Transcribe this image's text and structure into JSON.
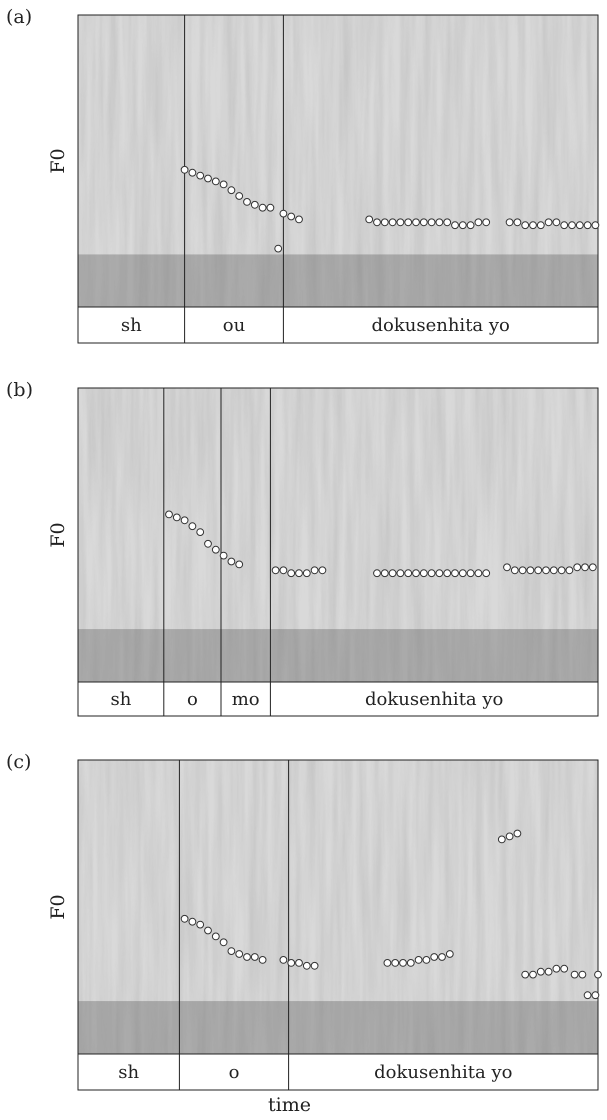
{
  "figure": {
    "xlabel": "time"
  },
  "chart_data": [
    {
      "type": "scatter",
      "panel": "(a)",
      "ylabel": "F0",
      "segments": [
        "sh",
        "ou",
        "dokusenhita yo"
      ],
      "series": [
        {
          "points": [
            [
              0.205,
              0.47
            ],
            [
              0.22,
              0.46
            ],
            [
              0.235,
              0.45
            ],
            [
              0.25,
              0.44
            ],
            [
              0.265,
              0.43
            ],
            [
              0.28,
              0.42
            ],
            [
              0.295,
              0.4
            ],
            [
              0.31,
              0.38
            ],
            [
              0.325,
              0.36
            ],
            [
              0.34,
              0.35
            ],
            [
              0.355,
              0.34
            ],
            [
              0.37,
              0.34
            ],
            [
              0.385,
              0.2
            ],
            [
              0.395,
              0.32
            ],
            [
              0.41,
              0.31
            ],
            [
              0.425,
              0.3
            ],
            [
              0.56,
              0.3
            ],
            [
              0.575,
              0.29
            ],
            [
              0.59,
              0.29
            ],
            [
              0.605,
              0.29
            ],
            [
              0.62,
              0.29
            ],
            [
              0.635,
              0.29
            ],
            [
              0.65,
              0.29
            ],
            [
              0.665,
              0.29
            ],
            [
              0.68,
              0.29
            ],
            [
              0.695,
              0.29
            ],
            [
              0.71,
              0.29
            ],
            [
              0.725,
              0.28
            ],
            [
              0.74,
              0.28
            ],
            [
              0.755,
              0.28
            ],
            [
              0.77,
              0.29
            ],
            [
              0.785,
              0.29
            ],
            [
              0.83,
              0.29
            ],
            [
              0.845,
              0.29
            ],
            [
              0.86,
              0.28
            ],
            [
              0.875,
              0.28
            ],
            [
              0.89,
              0.28
            ],
            [
              0.905,
              0.29
            ],
            [
              0.92,
              0.29
            ],
            [
              0.935,
              0.28
            ],
            [
              0.95,
              0.28
            ],
            [
              0.965,
              0.28
            ],
            [
              0.98,
              0.28
            ],
            [
              0.995,
              0.28
            ]
          ]
        }
      ]
    },
    {
      "type": "scatter",
      "panel": "(b)",
      "ylabel": "F0",
      "segments": [
        "sh",
        "o",
        "mo",
        "dokusenhita yo"
      ],
      "series": [
        {
          "points": [
            [
              0.175,
              0.57
            ],
            [
              0.19,
              0.56
            ],
            [
              0.205,
              0.55
            ],
            [
              0.22,
              0.53
            ],
            [
              0.235,
              0.51
            ],
            [
              0.25,
              0.47
            ],
            [
              0.265,
              0.45
            ],
            [
              0.28,
              0.43
            ],
            [
              0.295,
              0.41
            ],
            [
              0.31,
              0.4
            ],
            [
              0.38,
              0.38
            ],
            [
              0.395,
              0.38
            ],
            [
              0.41,
              0.37
            ],
            [
              0.425,
              0.37
            ],
            [
              0.44,
              0.37
            ],
            [
              0.455,
              0.38
            ],
            [
              0.47,
              0.38
            ],
            [
              0.575,
              0.37
            ],
            [
              0.59,
              0.37
            ],
            [
              0.605,
              0.37
            ],
            [
              0.62,
              0.37
            ],
            [
              0.635,
              0.37
            ],
            [
              0.65,
              0.37
            ],
            [
              0.665,
              0.37
            ],
            [
              0.68,
              0.37
            ],
            [
              0.695,
              0.37
            ],
            [
              0.71,
              0.37
            ],
            [
              0.725,
              0.37
            ],
            [
              0.74,
              0.37
            ],
            [
              0.755,
              0.37
            ],
            [
              0.77,
              0.37
            ],
            [
              0.785,
              0.37
            ],
            [
              0.825,
              0.39
            ],
            [
              0.84,
              0.38
            ],
            [
              0.855,
              0.38
            ],
            [
              0.87,
              0.38
            ],
            [
              0.885,
              0.38
            ],
            [
              0.9,
              0.38
            ],
            [
              0.915,
              0.38
            ],
            [
              0.93,
              0.38
            ],
            [
              0.945,
              0.38
            ],
            [
              0.96,
              0.39
            ],
            [
              0.975,
              0.39
            ],
            [
              0.99,
              0.39
            ]
          ]
        }
      ]
    },
    {
      "type": "scatter",
      "panel": "(c)",
      "ylabel": "F0",
      "segments": [
        "sh",
        "o",
        "dokusenhita yo"
      ],
      "series": [
        {
          "points": [
            [
              0.205,
              0.46
            ],
            [
              0.22,
              0.45
            ],
            [
              0.235,
              0.44
            ],
            [
              0.25,
              0.42
            ],
            [
              0.265,
              0.4
            ],
            [
              0.28,
              0.38
            ],
            [
              0.295,
              0.35
            ],
            [
              0.31,
              0.34
            ],
            [
              0.325,
              0.33
            ],
            [
              0.34,
              0.33
            ],
            [
              0.355,
              0.32
            ],
            [
              0.395,
              0.32
            ],
            [
              0.41,
              0.31
            ],
            [
              0.425,
              0.31
            ],
            [
              0.44,
              0.3
            ],
            [
              0.455,
              0.3
            ],
            [
              0.595,
              0.31
            ],
            [
              0.61,
              0.31
            ],
            [
              0.625,
              0.31
            ],
            [
              0.64,
              0.31
            ],
            [
              0.655,
              0.32
            ],
            [
              0.67,
              0.32
            ],
            [
              0.685,
              0.33
            ],
            [
              0.7,
              0.33
            ],
            [
              0.715,
              0.34
            ],
            [
              0.815,
              0.73
            ],
            [
              0.83,
              0.74
            ],
            [
              0.845,
              0.75
            ],
            [
              0.86,
              0.27
            ],
            [
              0.875,
              0.27
            ],
            [
              0.89,
              0.28
            ],
            [
              0.905,
              0.28
            ],
            [
              0.92,
              0.29
            ],
            [
              0.935,
              0.29
            ],
            [
              0.955,
              0.27
            ],
            [
              0.97,
              0.27
            ],
            [
              0.98,
              0.2
            ],
            [
              0.995,
              0.2
            ],
            [
              1.0,
              0.27
            ]
          ]
        }
      ]
    }
  ]
}
